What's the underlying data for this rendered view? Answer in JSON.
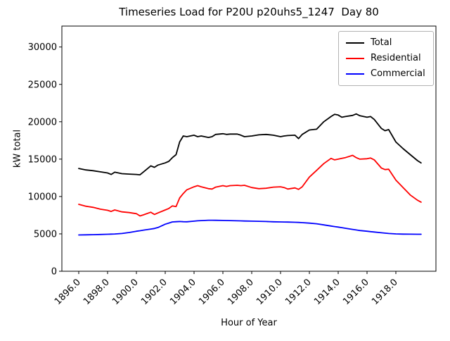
{
  "chart_data": {
    "type": "line",
    "title": "Timeseries Load for P20U p20uhs5_1247  Day 80",
    "xlabel": "Hour of Year",
    "ylabel": "kW total",
    "grid": false,
    "legend_position": "upper right",
    "xlim": [
      1894.83,
      1920.78
    ],
    "ylim": [
      0,
      32800
    ],
    "xticks": [
      1896,
      1898,
      1900,
      1902,
      1904,
      1906,
      1908,
      1910,
      1912,
      1914,
      1916,
      1918
    ],
    "xtick_labels": [
      "1896.0",
      "1898.0",
      "1900.0",
      "1902.0",
      "1904.0",
      "1906.0",
      "1908.0",
      "1910.0",
      "1912.0",
      "1914.0",
      "1916.0",
      "1918.0"
    ],
    "yticks": [
      0,
      5000,
      10000,
      15000,
      20000,
      25000,
      30000
    ],
    "ytick_labels": [
      "0",
      "5000",
      "10000",
      "15000",
      "20000",
      "25000",
      "30000"
    ],
    "x": [
      1896.0,
      1896.5,
      1897.0,
      1897.5,
      1898.0,
      1898.25,
      1898.5,
      1899.0,
      1899.5,
      1900.0,
      1900.25,
      1900.5,
      1901.0,
      1901.25,
      1901.5,
      1902.0,
      1902.25,
      1902.5,
      1902.75,
      1903.0,
      1903.25,
      1903.5,
      1904.0,
      1904.25,
      1904.5,
      1905.0,
      1905.25,
      1905.5,
      1906.0,
      1906.25,
      1906.5,
      1907.0,
      1907.25,
      1907.5,
      1908.0,
      1908.5,
      1909.0,
      1909.5,
      1910.0,
      1910.25,
      1910.5,
      1911.0,
      1911.25,
      1911.5,
      1912.0,
      1912.5,
      1913.0,
      1913.5,
      1913.75,
      1914.0,
      1914.25,
      1914.5,
      1915.0,
      1915.25,
      1915.5,
      1916.0,
      1916.25,
      1916.5,
      1917.0,
      1917.25,
      1917.5,
      1918.0,
      1918.5,
      1919.0,
      1919.5,
      1919.75
    ],
    "series": [
      {
        "name": "Total",
        "color": "#000000",
        "values": [
          13750,
          13550,
          13450,
          13300,
          13150,
          12950,
          13250,
          13050,
          13000,
          12950,
          12900,
          13300,
          14100,
          13900,
          14200,
          14500,
          14700,
          15200,
          15600,
          17300,
          18100,
          18000,
          18200,
          18000,
          18100,
          17900,
          18000,
          18300,
          18400,
          18300,
          18350,
          18350,
          18200,
          18000,
          18100,
          18250,
          18300,
          18200,
          18000,
          18100,
          18150,
          18200,
          17750,
          18300,
          18900,
          19000,
          20000,
          20700,
          21000,
          20900,
          20600,
          20700,
          20850,
          21050,
          20800,
          20600,
          20700,
          20300,
          19100,
          18800,
          18950,
          17300,
          16400,
          15600,
          14800,
          14500
        ]
      },
      {
        "name": "Residential",
        "color": "#ff0000",
        "values": [
          8950,
          8700,
          8550,
          8300,
          8150,
          8000,
          8200,
          7950,
          7850,
          7700,
          7400,
          7550,
          7900,
          7600,
          7800,
          8200,
          8400,
          8750,
          8650,
          9800,
          10400,
          10900,
          11300,
          11450,
          11300,
          11050,
          11000,
          11250,
          11450,
          11350,
          11450,
          11500,
          11450,
          11500,
          11200,
          11050,
          11100,
          11250,
          11300,
          11200,
          11000,
          11150,
          10950,
          11300,
          12600,
          13500,
          14400,
          15100,
          14900,
          15000,
          15100,
          15200,
          15500,
          15200,
          15000,
          15050,
          15150,
          14900,
          13800,
          13600,
          13650,
          12200,
          11200,
          10200,
          9500,
          9250
        ]
      },
      {
        "name": "Commercial",
        "color": "#0000ff",
        "values": [
          4850,
          4870,
          4890,
          4920,
          4950,
          4970,
          4990,
          5050,
          5180,
          5350,
          5420,
          5500,
          5650,
          5720,
          5850,
          6300,
          6450,
          6600,
          6630,
          6650,
          6630,
          6620,
          6700,
          6750,
          6780,
          6820,
          6820,
          6810,
          6800,
          6790,
          6780,
          6750,
          6740,
          6720,
          6700,
          6680,
          6650,
          6620,
          6600,
          6590,
          6580,
          6550,
          6530,
          6500,
          6440,
          6350,
          6200,
          6050,
          5980,
          5910,
          5830,
          5750,
          5600,
          5520,
          5450,
          5350,
          5300,
          5250,
          5150,
          5100,
          5050,
          5000,
          4970,
          4960,
          4950,
          4950
        ]
      }
    ]
  }
}
